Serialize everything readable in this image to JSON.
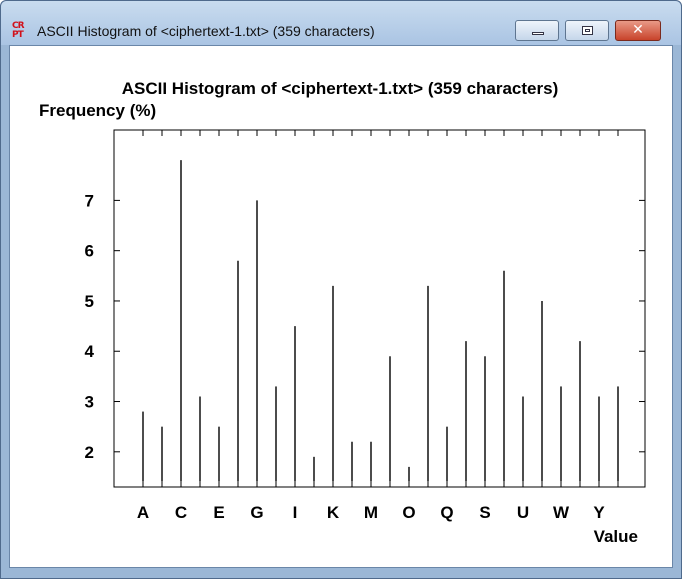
{
  "window": {
    "title": "ASCII Histogram of <ciphertext-1.txt> (359 characters)",
    "icon": "cryptool-icon",
    "icon_top": "CR",
    "icon_bottom": "PT",
    "close_glyph": "✕"
  },
  "chart_data": {
    "type": "bar",
    "title": "ASCII Histogram of <ciphertext-1.txt> (359 characters)",
    "ylabel": "Frequency (%)",
    "xlabel": "Value",
    "categories": [
      "A",
      "B",
      "C",
      "D",
      "E",
      "F",
      "G",
      "H",
      "I",
      "J",
      "K",
      "L",
      "M",
      "N",
      "O",
      "P",
      "Q",
      "R",
      "S",
      "T",
      "U",
      "V",
      "W",
      "X",
      "Y",
      "Z"
    ],
    "tick_labels": [
      "A",
      "C",
      "E",
      "G",
      "I",
      "K",
      "M",
      "O",
      "Q",
      "S",
      "U",
      "W",
      "Y"
    ],
    "values": [
      2.8,
      2.5,
      7.8,
      3.1,
      2.5,
      5.8,
      7.0,
      3.3,
      4.5,
      1.9,
      5.3,
      2.2,
      2.2,
      3.9,
      1.7,
      5.3,
      2.5,
      4.2,
      3.9,
      5.6,
      3.1,
      5.0,
      3.3,
      4.2,
      3.1,
      3.3
    ],
    "yticks": [
      2,
      3,
      4,
      5,
      6,
      7
    ],
    "ylim": [
      1.3,
      8.4
    ],
    "grid": false,
    "bar_color": "#000000"
  }
}
